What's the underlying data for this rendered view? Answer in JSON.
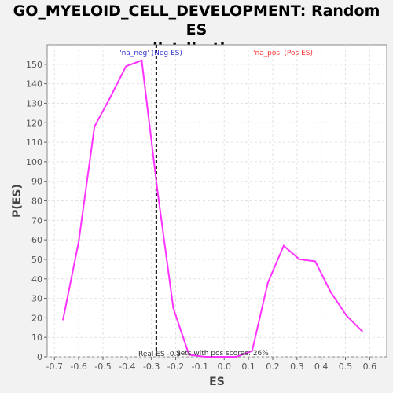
{
  "chart_data": {
    "type": "line",
    "title_line1": "GO_MYELOID_CELL_DEVELOPMENT: Random ES",
    "title_line2": "distribution",
    "xlabel": "ES",
    "ylabel": "P(ES)",
    "xlim": [
      -0.73,
      0.67
    ],
    "ylim": [
      0,
      160
    ],
    "x_ticks": [
      -0.7,
      -0.6,
      -0.5,
      -0.4,
      -0.3,
      -0.2,
      -0.1,
      0.0,
      0.1,
      0.2,
      0.3,
      0.4,
      0.5,
      0.6
    ],
    "x_tick_labels": [
      "-0.7",
      "-0.6",
      "-0.5",
      "-0.4",
      "-0.3",
      "-0.2",
      "-0.1",
      "0.0",
      "0.1",
      "0.2",
      "0.3",
      "0.4",
      "0.5",
      "0.6"
    ],
    "y_ticks": [
      0,
      10,
      20,
      30,
      40,
      50,
      60,
      70,
      80,
      90,
      100,
      110,
      120,
      130,
      140,
      150
    ],
    "grid": true,
    "series": [
      {
        "color": "#ff33ff",
        "x": [
          -0.665,
          -0.6,
          -0.535,
          -0.47,
          -0.405,
          -0.34,
          -0.275,
          -0.21,
          -0.145,
          -0.08,
          -0.015,
          0.05,
          0.115,
          0.18,
          0.245,
          0.31,
          0.375,
          0.44,
          0.505,
          0.57
        ],
        "y": [
          19,
          59,
          118,
          133,
          149,
          152,
          85,
          25,
          1,
          0,
          0,
          0,
          3,
          38,
          57,
          50,
          49,
          33,
          21,
          13
        ]
      }
    ],
    "real_es": -0.28,
    "real_es_color": "#000000",
    "annotations": {
      "neg_label": "'na_neg' (Neg ES)",
      "neg_color": "#3333cc",
      "pos_label": "'na_pos' (Pos ES)",
      "pos_color": "#ff3333",
      "real_es_text": "Real ES -0.3",
      "sets_text": "Sets with pos scores: 26%"
    }
  }
}
